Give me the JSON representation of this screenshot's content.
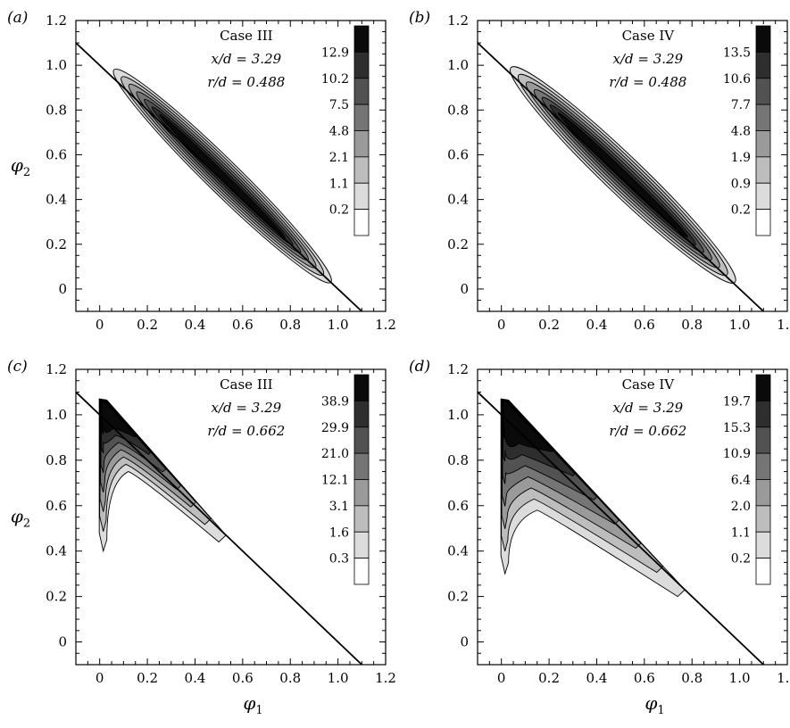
{
  "chart_data": [
    {
      "type": "contour",
      "panel": "(a)",
      "xlabel": "",
      "ylabel": "φ2",
      "xlim": [
        -0.1,
        1.2
      ],
      "ylim": [
        -0.1,
        1.2
      ],
      "xticks": [
        "0",
        "0.2",
        "0.4",
        "0.6",
        "0.8",
        "1.0",
        "1.2"
      ],
      "yticks": [
        "0",
        "0.2",
        "0.4",
        "0.6",
        "0.8",
        "1.0",
        "1.2"
      ],
      "annotations": [
        "Case III",
        "x/d = 3.29",
        "r/d = 0.488"
      ],
      "colorbar_levels": [
        "0.2",
        "1.1",
        "2.1",
        "4.8",
        "7.5",
        "10.2",
        "12.9"
      ],
      "reference_line": {
        "from": [
          -0.1,
          1.1
        ],
        "to": [
          1.1,
          -0.1
        ]
      },
      "distribution": {
        "spine_from": [
          0.06,
          0.98
        ],
        "spine_to": [
          0.97,
          0.03
        ],
        "half_width": 0.07,
        "shape": "band"
      }
    },
    {
      "type": "contour",
      "panel": "(b)",
      "xlabel": "",
      "ylabel": "",
      "xlim": [
        -0.1,
        1.2
      ],
      "ylim": [
        -0.1,
        1.2
      ],
      "xticks": [
        "0",
        "0.2",
        "0.4",
        "0.6",
        "0.8",
        "1.0",
        "1.2"
      ],
      "yticks": [
        "0",
        "0.2",
        "0.4",
        "0.6",
        "0.8",
        "1.0",
        "1.2"
      ],
      "annotations": [
        "Case IV",
        "x/d = 3.29",
        "r/d = 0.488"
      ],
      "colorbar_levels": [
        "0.2",
        "0.9",
        "1.9",
        "4.8",
        "7.7",
        "10.6",
        "13.5"
      ],
      "reference_line": {
        "from": [
          -0.1,
          1.1
        ],
        "to": [
          1.1,
          -0.1
        ]
      },
      "distribution": {
        "spine_from": [
          0.04,
          0.99
        ],
        "spine_to": [
          0.98,
          0.03
        ],
        "half_width": 0.08,
        "shape": "band"
      }
    },
    {
      "type": "contour",
      "panel": "(c)",
      "xlabel": "φ1",
      "ylabel": "φ2",
      "xlim": [
        -0.1,
        1.2
      ],
      "ylim": [
        -0.1,
        1.2
      ],
      "xticks": [
        "0",
        "0.2",
        "0.4",
        "0.6",
        "0.8",
        "1.0",
        "1.2"
      ],
      "yticks": [
        "0",
        "0.2",
        "0.4",
        "0.6",
        "0.8",
        "1.0",
        "1.2"
      ],
      "annotations": [
        "Case III",
        "x/d = 3.29",
        "r/d = 0.662"
      ],
      "colorbar_levels": [
        "0.3",
        "1.6",
        "3.1",
        "12.1",
        "21.0",
        "29.9",
        "38.9"
      ],
      "reference_line": {
        "from": [
          -0.1,
          1.1
        ],
        "to": [
          1.1,
          -0.1
        ]
      },
      "distribution": {
        "apex": [
          0.01,
          1.07
        ],
        "tip": [
          0.53,
          0.47
        ],
        "bottom": [
          0.01,
          0.4
        ],
        "dip": [
          0.12,
          0.75
        ],
        "shape": "wedge"
      }
    },
    {
      "type": "contour",
      "panel": "(d)",
      "xlabel": "φ1",
      "ylabel": "",
      "xlim": [
        -0.1,
        1.2
      ],
      "ylim": [
        -0.1,
        1.2
      ],
      "xticks": [
        "0",
        "0.2",
        "0.4",
        "0.6",
        "0.8",
        "1.0",
        "1.2"
      ],
      "yticks": [
        "0",
        "0.2",
        "0.4",
        "0.6",
        "0.8",
        "1.0",
        "1.2"
      ],
      "annotations": [
        "Case IV",
        "x/d = 3.29",
        "r/d = 0.662"
      ],
      "colorbar_levels": [
        "0.2",
        "1.1",
        "2.0",
        "6.4",
        "10.9",
        "15.3",
        "19.7"
      ],
      "reference_line": {
        "from": [
          -0.1,
          1.1
        ],
        "to": [
          1.1,
          -0.1
        ]
      },
      "distribution": {
        "apex": [
          0.01,
          1.07
        ],
        "tip": [
          0.77,
          0.23
        ],
        "bottom": [
          0.01,
          0.3
        ],
        "dip": [
          0.15,
          0.58
        ],
        "shape": "wedge"
      }
    }
  ],
  "palette": {
    "shade_levels": [
      "#ffffff",
      "#dcdcdc",
      "#bdbdbd",
      "#9a9a9a",
      "#757575",
      "#525252",
      "#2e2e2e",
      "#0a0a0a"
    ],
    "line": "#000000"
  }
}
